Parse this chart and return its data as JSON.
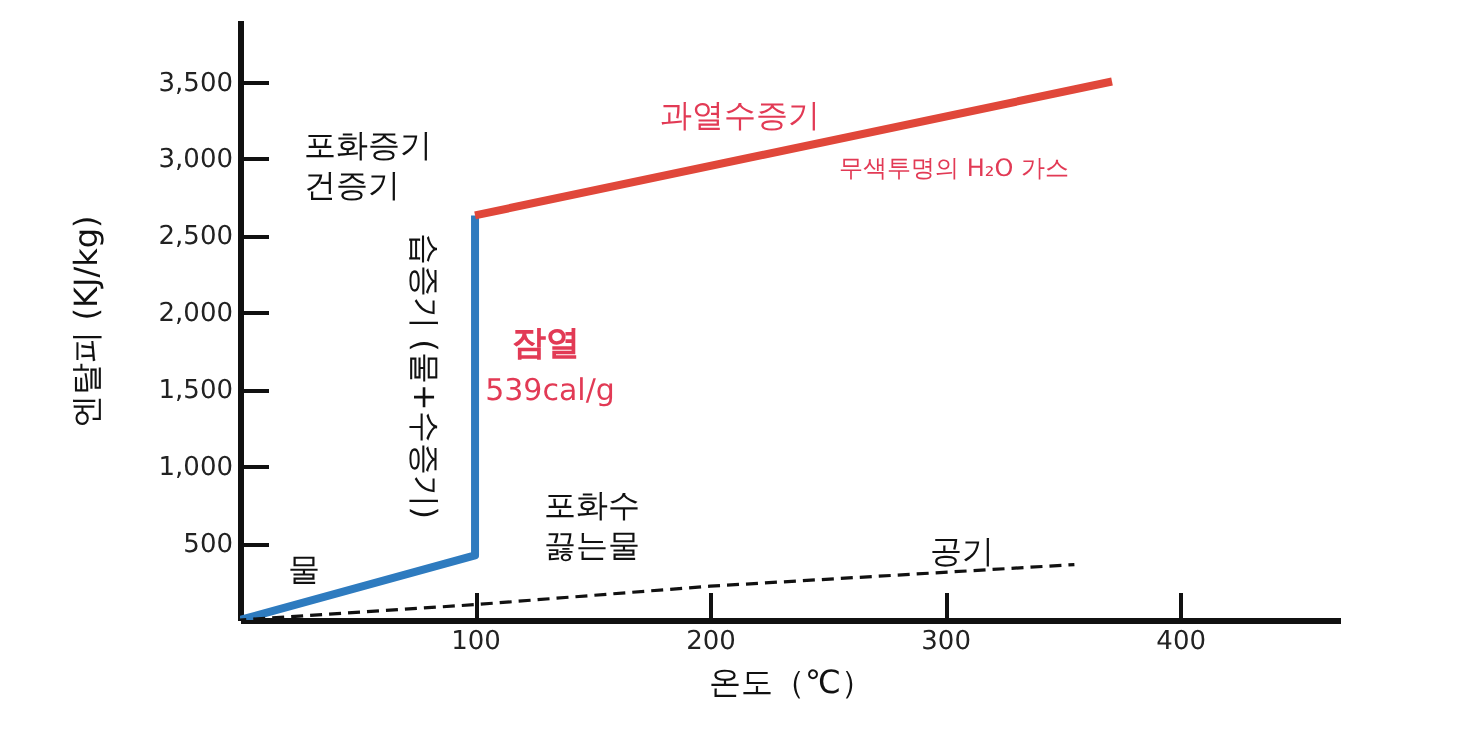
{
  "chart_data": {
    "type": "line",
    "xlabel": "온도（℃）",
    "ylabel": "엔탈피 (KJ/kg)",
    "xlim": [
      0,
      468
    ],
    "ylim": [
      0,
      3900
    ],
    "xticks": [
      100,
      200,
      300,
      400
    ],
    "yticks": [
      {
        "value": 500,
        "label": "500"
      },
      {
        "value": 1000,
        "label": "1,000"
      },
      {
        "value": 1500,
        "label": "1,500"
      },
      {
        "value": 2000,
        "label": "2,000"
      },
      {
        "value": 2500,
        "label": "2,500"
      },
      {
        "value": 3000,
        "label": "3,000"
      },
      {
        "value": 3500,
        "label": "3,500"
      }
    ],
    "grid": false,
    "series": [
      {
        "color": "#2e7bbf",
        "x": [
          0,
          100,
          100
        ],
        "values": [
          0,
          420,
          2630
        ]
      },
      {
        "color": "#e0473a",
        "x": [
          100,
          371
        ],
        "values": [
          2630,
          3500
        ]
      },
      {
        "color": "#111111",
        "line_style": "dashed",
        "x": [
          0,
          100,
          200,
          355
        ],
        "values": [
          0,
          100,
          220,
          360
        ]
      }
    ],
    "annotations": [
      "포화증기\n건증기",
      "물",
      "습증기 (물+수증기)",
      "잠열",
      "539cal/g",
      "과열수증기",
      "무색투명의 H₂O 가스",
      "포화수\n끓는물",
      "공기"
    ]
  }
}
